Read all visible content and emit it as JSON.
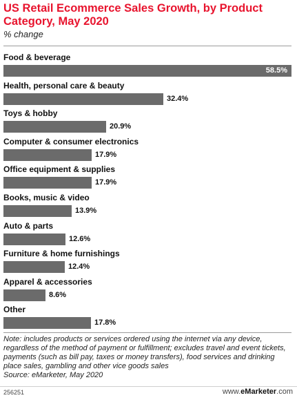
{
  "chart_data": {
    "type": "bar",
    "orientation": "horizontal",
    "title": "US Retail Ecommerce Sales Growth, by Product Category, May 2020",
    "subtitle": "% change",
    "categories": [
      "Food & beverage",
      "Health, personal care & beauty",
      "Toys & hobby",
      "Computer & consumer electronics",
      "Office equipment & supplies",
      "Books, music & video",
      "Auto & parts",
      "Furniture & home furnishings",
      "Apparel & accessories",
      "Other"
    ],
    "values": [
      58.5,
      32.4,
      20.9,
      17.9,
      17.9,
      13.9,
      12.6,
      12.4,
      8.6,
      17.8
    ],
    "value_labels": [
      "58.5%",
      "32.4%",
      "20.9%",
      "17.9%",
      "17.9%",
      "13.9%",
      "12.6%",
      "12.4%",
      "8.6%",
      "17.8%"
    ],
    "bar_color": "#6b6b6b",
    "grid": false
  },
  "footer": {
    "note": "Note: includes products or services ordered using the internet via any device, regardless of the method of payment or fulfillment; excludes travel and event tickets, payments (such as bill pay, taxes or money transfers), food services and drinking place sales, gambling and other vice goods sales",
    "source": "Source: eMarketer, May 2020",
    "chart_id": "256251",
    "brand_prefix": "www.",
    "brand_name": "eMarketer",
    "brand_suffix": ".com"
  }
}
